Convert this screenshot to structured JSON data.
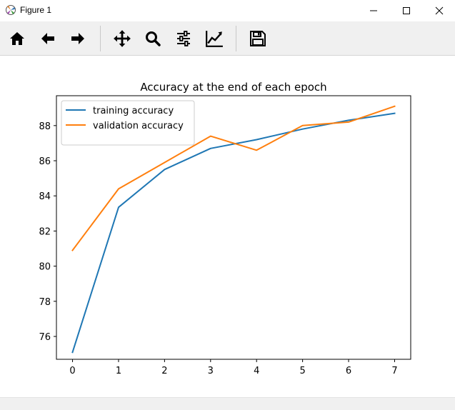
{
  "window": {
    "title": "Figure 1",
    "controls": [
      "minimize-icon",
      "maximize-icon",
      "close-icon"
    ]
  },
  "toolbar": {
    "buttons": [
      {
        "name": "home-button",
        "icon": "home-icon"
      },
      {
        "name": "back-button",
        "icon": "arrow-left-icon"
      },
      {
        "name": "forward-button",
        "icon": "arrow-right-icon"
      },
      {
        "name": "pan-button",
        "icon": "move-icon"
      },
      {
        "name": "zoom-button",
        "icon": "magnifier-icon"
      },
      {
        "name": "configure-subplots-button",
        "icon": "sliders-icon"
      },
      {
        "name": "edit-axis-button",
        "icon": "chart-line-icon"
      },
      {
        "name": "save-button",
        "icon": "floppy-disk-icon"
      }
    ]
  },
  "chart_data": {
    "type": "line",
    "title": "Accuracy at the end of each epoch",
    "xlabel": "",
    "ylabel": "",
    "x": [
      0,
      1,
      2,
      3,
      4,
      5,
      6,
      7
    ],
    "xlim": [
      -0.35,
      7.35
    ],
    "ylim": [
      74.7,
      89.7
    ],
    "xticks": [
      "0",
      "1",
      "2",
      "3",
      "4",
      "5",
      "6",
      "7"
    ],
    "yticks": [
      "76",
      "78",
      "80",
      "82",
      "84",
      "86",
      "88"
    ],
    "ytick_values": [
      76,
      78,
      80,
      82,
      84,
      86,
      88
    ],
    "grid": false,
    "legend_position": "upper-left",
    "series": [
      {
        "name": "training accuracy",
        "color": "#1f77b4",
        "values": [
          75.1,
          83.35,
          85.5,
          86.7,
          87.2,
          87.8,
          88.3,
          88.7
        ]
      },
      {
        "name": "validation accuracy",
        "color": "#ff7f0e",
        "values": [
          80.9,
          84.4,
          85.9,
          87.4,
          86.6,
          88.0,
          88.2,
          89.1
        ]
      }
    ]
  }
}
